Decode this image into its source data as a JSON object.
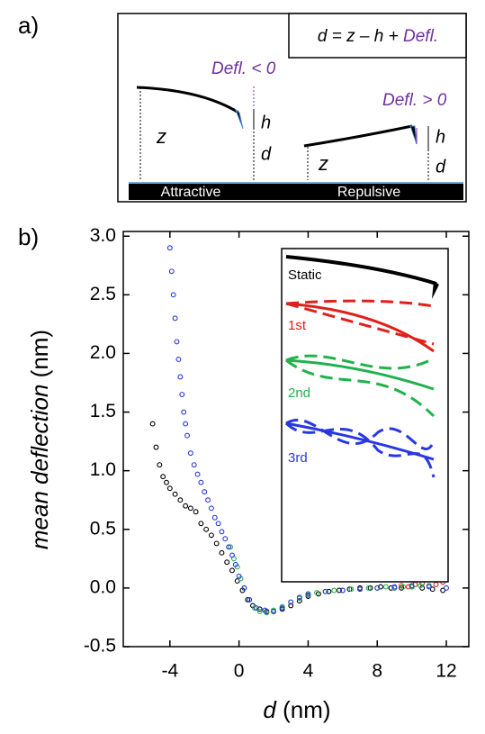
{
  "panel_a": {
    "label": "a)",
    "equation": [
      "d = z – h + ",
      "Defl."
    ],
    "defl_neg": "Defl. < 0",
    "defl_pos": "Defl. > 0",
    "left": {
      "z": "z",
      "h": "h",
      "d": "d"
    },
    "right": {
      "z": "z",
      "h": "h",
      "d": "d"
    },
    "attractive": "Attractive",
    "repulsive": "Repulsive"
  },
  "chart_data": {
    "type": "scatter",
    "panel_label": "b)",
    "xlabel": [
      "d",
      " (nm)"
    ],
    "ylabel": [
      "mean deflection",
      " (nm)"
    ],
    "xlim": [
      -6.7,
      13.3
    ],
    "ylim": [
      -0.5,
      3.04
    ],
    "xticks": [
      -4,
      0,
      4,
      8,
      12
    ],
    "yticks": [
      {
        "value": 3,
        "label": "3.0"
      },
      2.5,
      {
        "value": 2,
        "label": "2.0"
      },
      1.5,
      {
        "value": 1,
        "label": "1.0"
      },
      0.5,
      {
        "value": 0,
        "label": "0.0"
      },
      -0.5
    ],
    "inset_labels": [
      "Static",
      "1st",
      "2nd",
      "3rd"
    ],
    "series": [
      {
        "name": "Static",
        "color": "#000000",
        "x": [
          -5,
          -4.8,
          -4.6,
          -4.4,
          -4.2,
          -4,
          -3.7,
          -3.4,
          -3.1,
          -2.8,
          -2.5,
          -2.2,
          -1.9,
          -1.6,
          -1.3,
          -1,
          -0.7,
          -0.4,
          -0.1,
          0.2,
          0.5,
          0.8,
          1.2,
          1.6,
          2,
          2.5,
          3,
          3.5,
          4,
          4.6,
          5.2,
          5.8,
          6.4,
          7,
          7.6,
          8.2,
          8.8,
          9.4,
          10,
          10.6,
          11.2,
          11.8
        ],
        "values": [
          1.4,
          1.2,
          1.05,
          0.95,
          0.9,
          0.85,
          0.8,
          0.75,
          0.7,
          0.68,
          0.65,
          0.55,
          0.5,
          0.45,
          0.38,
          0.3,
          0.22,
          0.15,
          0.06,
          -0.02,
          -0.1,
          -0.15,
          -0.18,
          -0.2,
          -0.2,
          -0.18,
          -0.15,
          -0.11,
          -0.07,
          -0.05,
          -0.03,
          -0.02,
          -0.01,
          0,
          0,
          0.01,
          0,
          0,
          0.01,
          0,
          -0.01,
          -0.02
        ]
      },
      {
        "name": "1st",
        "color": "#e0201b",
        "x": [
          9,
          9.4,
          9.8,
          10.2,
          10.6,
          11,
          11.4,
          11.8
        ],
        "values": [
          0.0,
          0.02,
          0.01,
          0.03,
          0.04,
          0.02,
          0.03,
          0.05
        ]
      },
      {
        "name": "2nd",
        "color": "#22b14c",
        "x": [
          -0.5,
          -0.3,
          -0.1,
          0.1,
          0.3,
          0.6,
          0.9,
          1.2,
          1.6,
          2,
          2.5,
          3,
          3.5,
          4,
          4.5,
          5,
          5.5,
          6,
          6.5,
          7,
          7.5,
          8,
          8.5,
          9,
          9.5,
          10,
          10.5,
          11
        ],
        "values": [
          0.35,
          0.25,
          0.18,
          0.08,
          0.0,
          -0.1,
          -0.17,
          -0.2,
          -0.21,
          -0.19,
          -0.16,
          -0.12,
          -0.09,
          -0.06,
          -0.04,
          -0.03,
          -0.02,
          -0.02,
          -0.01,
          -0.01,
          0,
          0,
          0.01,
          0,
          0.01,
          0.01,
          0.02,
          0.02
        ]
      },
      {
        "name": "3rd",
        "color": "#2838e0",
        "x": [
          -4,
          -3.9,
          -3.8,
          -3.7,
          -3.6,
          -3.5,
          -3.4,
          -3.3,
          -3.2,
          -3.1,
          -3,
          -2.8,
          -2.6,
          -2.4,
          -2.2,
          -2,
          -1.8,
          -1.6,
          -1.4,
          -1.2,
          -1,
          -0.8,
          -0.6,
          -0.4,
          -0.2,
          0,
          0.3,
          0.6,
          1,
          1.5,
          2,
          2.5,
          3,
          3.5,
          4,
          5,
          6,
          7,
          8,
          9,
          10,
          11,
          12
        ],
        "values": [
          2.9,
          2.7,
          2.5,
          2.3,
          2.1,
          1.95,
          1.8,
          1.65,
          1.5,
          1.4,
          1.3,
          1.15,
          1.05,
          0.97,
          0.9,
          0.82,
          0.75,
          0.68,
          0.6,
          0.55,
          0.48,
          0.42,
          0.35,
          0.28,
          0.2,
          0.1,
          0.0,
          -0.1,
          -0.17,
          -0.19,
          -0.2,
          -0.17,
          -0.12,
          -0.08,
          -0.05,
          -0.03,
          -0.02,
          -0.01,
          0,
          0.01,
          0.02,
          0.01,
          0
        ]
      }
    ]
  }
}
